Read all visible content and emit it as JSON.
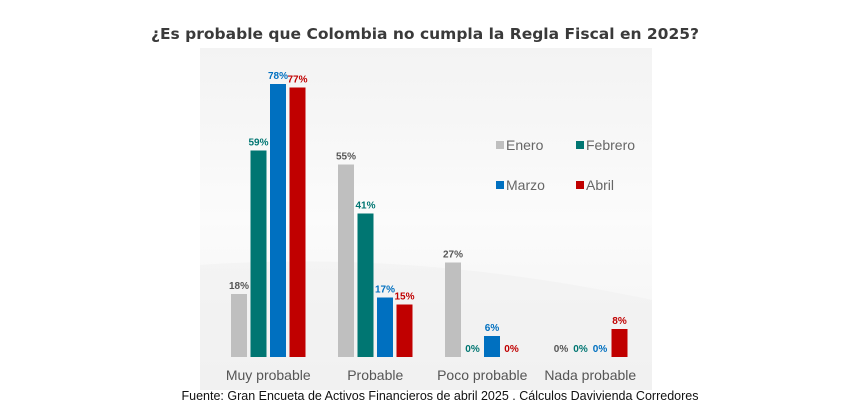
{
  "chart_data": {
    "type": "bar",
    "title": "¿Es probable que Colombia no cumpla la Regla Fiscal en 2025?",
    "categories": [
      "Muy probable",
      "Probable",
      "Poco probable",
      "Nada probable"
    ],
    "series": [
      {
        "name": "Enero",
        "color": "#bfbfbf",
        "label_color": "#555555",
        "values": [
          18,
          55,
          27,
          0
        ]
      },
      {
        "name": "Febrero",
        "color": "#007672",
        "label_color": "#007672",
        "values": [
          59,
          41,
          0,
          0
        ]
      },
      {
        "name": "Marzo",
        "color": "#0070c0",
        "label_color": "#0070c0",
        "values": [
          78,
          17,
          6,
          0
        ]
      },
      {
        "name": "Abril",
        "color": "#c00000",
        "label_color": "#c00000",
        "values": [
          77,
          15,
          0,
          8
        ]
      }
    ],
    "value_suffix": "%",
    "legend_position": "top-right",
    "grid": false,
    "ylim": [
      0,
      100
    ]
  },
  "caption": "Fuente: Gran Encueta de Activos Financieros de abril 2025 . Cálculos Daviviendа Corredores"
}
